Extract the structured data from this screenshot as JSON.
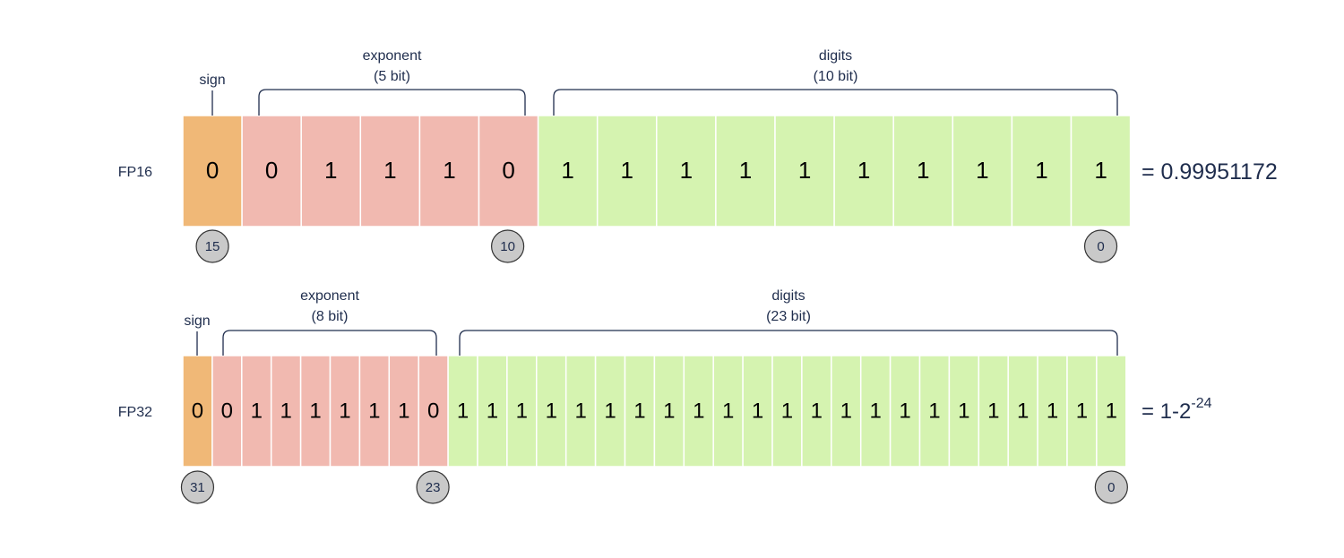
{
  "colors": {
    "sign": "#f0b877",
    "exponent": "#f1b9b0",
    "digits": "#d5f3b0",
    "text": "#1f2d4d",
    "marker_fill": "#c9c9c9"
  },
  "formats": [
    {
      "name": "FP16",
      "sign_label": "sign",
      "exponent_label": "exponent",
      "exponent_bits_label": "(5 bit)",
      "digits_label": "digits",
      "digits_bits_label": "(10 bit)",
      "sign_bits": [
        "0"
      ],
      "exponent_bits": [
        "0",
        "1",
        "1",
        "1",
        "0"
      ],
      "digit_bits": [
        "1",
        "1",
        "1",
        "1",
        "1",
        "1",
        "1",
        "1",
        "1",
        "1"
      ],
      "value_prefix": "= 0.99951172",
      "value_superscript": "",
      "markers": [
        "15",
        "10",
        "0"
      ]
    },
    {
      "name": "FP32",
      "sign_label": "sign",
      "exponent_label": "exponent",
      "exponent_bits_label": "(8 bit)",
      "digits_label": "digits",
      "digits_bits_label": "(23 bit)",
      "sign_bits": [
        "0"
      ],
      "exponent_bits": [
        "0",
        "1",
        "1",
        "1",
        "1",
        "1",
        "1",
        "0"
      ],
      "digit_bits": [
        "1",
        "1",
        "1",
        "1",
        "1",
        "1",
        "1",
        "1",
        "1",
        "1",
        "1",
        "1",
        "1",
        "1",
        "1",
        "1",
        "1",
        "1",
        "1",
        "1",
        "1",
        "1",
        "1"
      ],
      "value_prefix": "= 1-2",
      "value_superscript": "-24",
      "markers": [
        "31",
        "23",
        "0"
      ]
    }
  ]
}
